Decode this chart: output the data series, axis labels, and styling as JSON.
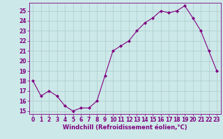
{
  "x": [
    0,
    1,
    2,
    3,
    4,
    5,
    6,
    7,
    8,
    9,
    10,
    11,
    12,
    13,
    14,
    15,
    16,
    17,
    18,
    19,
    20,
    21,
    22,
    23
  ],
  "y": [
    18,
    16.5,
    17,
    16.5,
    15.5,
    15,
    15.3,
    15.3,
    16,
    18.5,
    21,
    21.5,
    22,
    23,
    23.8,
    24.3,
    25,
    24.8,
    25,
    25.5,
    24.3,
    23,
    21,
    19
  ],
  "line_color": "#800080",
  "marker": "D",
  "marker_size": 2,
  "bg_color": "#cce8e8",
  "grid_color": "#aacccc",
  "xlabel": "Windchill (Refroidissement éolien,°C)",
  "xlabel_fontsize": 6.0,
  "tick_fontsize": 5.5,
  "ylim_min": 14.7,
  "ylim_max": 25.8,
  "yticks": [
    15,
    16,
    17,
    18,
    19,
    20,
    21,
    22,
    23,
    24,
    25
  ],
  "xlim_min": -0.5,
  "xlim_max": 23.5,
  "xticks": [
    0,
    1,
    2,
    3,
    4,
    5,
    6,
    7,
    8,
    9,
    10,
    11,
    12,
    13,
    14,
    15,
    16,
    17,
    18,
    19,
    20,
    21,
    22,
    23
  ]
}
